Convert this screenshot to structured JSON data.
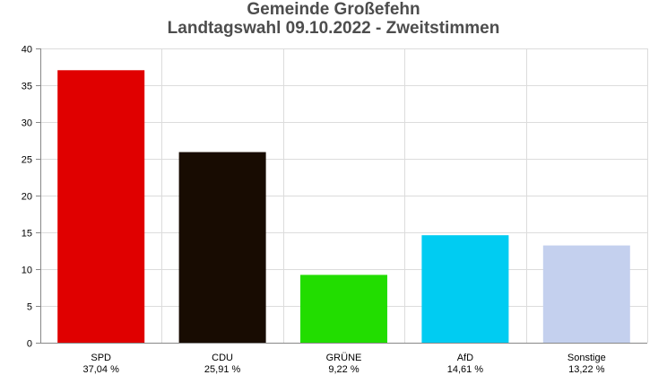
{
  "chart_data": {
    "type": "bar",
    "title": "Gemeinde Großefehn",
    "subtitle": "Landtagswahl 09.10.2022  - Zweitstimmen",
    "categories": [
      "SPD",
      "CDU",
      "GRÜNE",
      "AfD",
      "Sonstige"
    ],
    "value_labels": [
      "37,04 %",
      "25,91 %",
      "9,22 %",
      "14,61 %",
      "13,22 %"
    ],
    "values": [
      37.04,
      25.91,
      9.22,
      14.61,
      13.22
    ],
    "colors": [
      "#e00000",
      "#180c02",
      "#22dd00",
      "#00ccf2",
      "#c4d0ee"
    ],
    "ylim": [
      0,
      40
    ],
    "yticks": [
      "0",
      "5",
      "10",
      "15",
      "20",
      "25",
      "30",
      "35",
      "40"
    ],
    "grid": true,
    "xlabel": "",
    "ylabel": ""
  }
}
